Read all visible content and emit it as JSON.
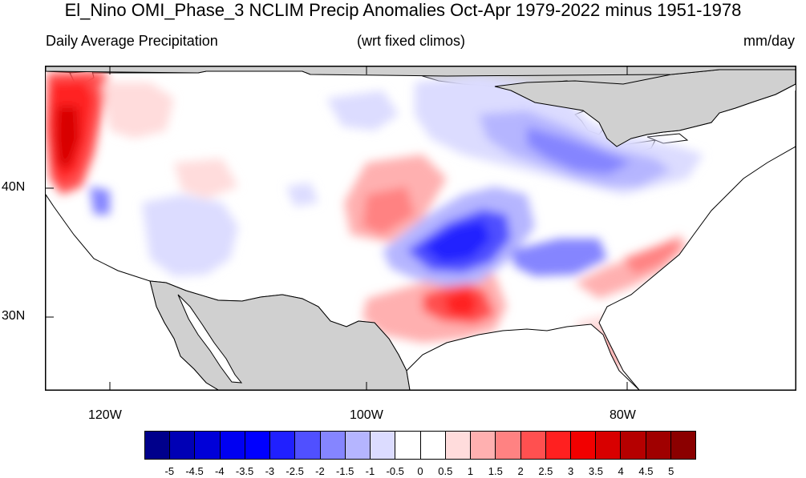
{
  "title": "El_Nino OMI_Phase_3 NCLIM Precip Anomalies Oct-Apr 1979-2022 minus 1951-1978",
  "subtitle_left": "Daily Average Precipitation",
  "subtitle_center": "(wrt fixed climos)",
  "subtitle_right": "mm/day",
  "lat_labels": [
    "40N",
    "30N"
  ],
  "lon_labels": [
    "120W",
    "100W",
    "80W"
  ],
  "colorbar": {
    "labels": [
      "-5",
      "-4.5",
      "-4",
      "-3.5",
      "-3",
      "-2.5",
      "-2",
      "-1.5",
      "-1",
      "-0.5",
      "0",
      "0.5",
      "1",
      "1.5",
      "2",
      "2.5",
      "3",
      "3.5",
      "4",
      "4.5",
      "5"
    ],
    "colors": [
      "#00008b",
      "#0000b5",
      "#0000d8",
      "#0000f2",
      "#0000ff",
      "#2020ff",
      "#5050ff",
      "#8585ff",
      "#b5b5ff",
      "#dcdcff",
      "#ffffff",
      "#ffffff",
      "#ffdcdc",
      "#ffb0b0",
      "#ff8282",
      "#ff5050",
      "#ff2020",
      "#f20000",
      "#d80000",
      "#b50000",
      "#a00000",
      "#8b0000"
    ]
  },
  "colors": {
    "land_mask": "#d0d0d0",
    "coastline": "#000000"
  }
}
